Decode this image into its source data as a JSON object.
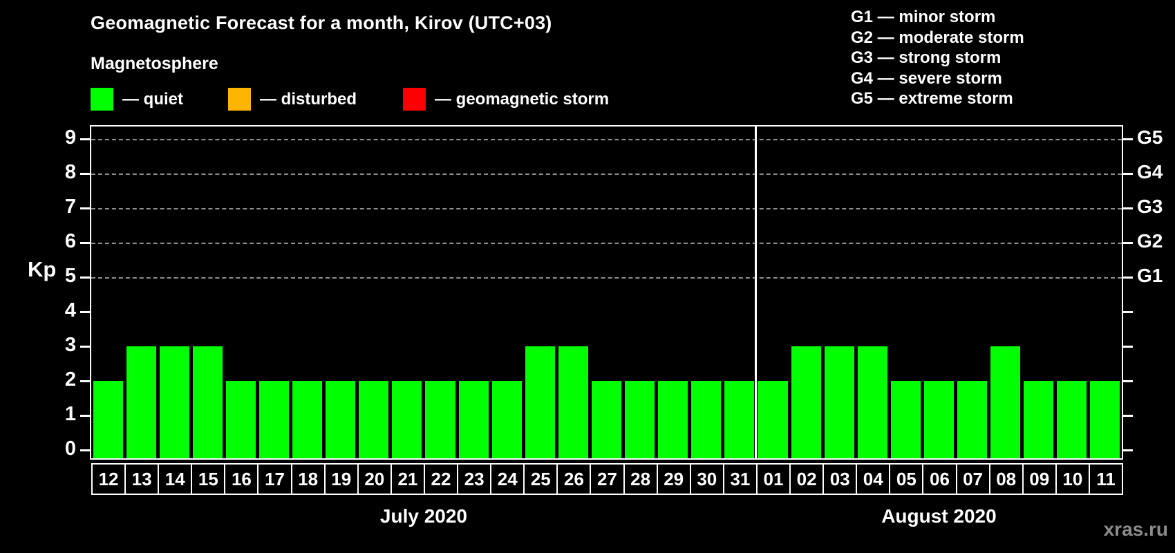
{
  "title": "Geomagnetic Forecast for a month, Kirov (UTC+03)",
  "subtitle": "Magnetosphere",
  "legend": {
    "items": [
      {
        "name": "quiet",
        "color": "#00ff00",
        "label": "— quiet"
      },
      {
        "name": "disturbed",
        "color": "#ffb400",
        "label": "— disturbed"
      },
      {
        "name": "storm",
        "color": "#ff0000",
        "label": "— geomagnetic storm"
      }
    ]
  },
  "g_legend": [
    "G1 — minor storm",
    "G2 — moderate storm",
    "G3 — strong storm",
    "G4 — severe storm",
    "G5 — extreme storm"
  ],
  "watermark": "xras.ru",
  "chart_data": {
    "type": "bar",
    "title": "Geomagnetic Forecast for a month, Kirov (UTC+03)",
    "ylabel": "Kp",
    "ylim": [
      0,
      9.4
    ],
    "yticks": [
      0,
      1,
      2,
      3,
      4,
      5,
      6,
      7,
      8,
      9
    ],
    "gridlines_at_kp": [
      5,
      6,
      7,
      8,
      9
    ],
    "grid_style": "dashed gray horizontal",
    "right_axis": [
      {
        "kp": 5,
        "label": "G1"
      },
      {
        "kp": 6,
        "label": "G2"
      },
      {
        "kp": 7,
        "label": "G3"
      },
      {
        "kp": 8,
        "label": "G4"
      },
      {
        "kp": 9,
        "label": "G5"
      }
    ],
    "bar_color": "#00ff00",
    "bar_status": "quiet",
    "groups": [
      {
        "month_label": "July 2020",
        "categories": [
          "12",
          "13",
          "14",
          "15",
          "16",
          "17",
          "18",
          "19",
          "20",
          "21",
          "22",
          "23",
          "24",
          "25",
          "26",
          "27",
          "28",
          "29",
          "30",
          "31"
        ],
        "values": [
          2,
          3,
          3,
          3,
          2,
          2,
          2,
          2,
          2,
          2,
          2,
          2,
          2,
          3,
          3,
          2,
          2,
          2,
          2,
          2
        ]
      },
      {
        "month_label": "August 2020",
        "categories": [
          "01",
          "02",
          "03",
          "04",
          "05",
          "06",
          "07",
          "08",
          "09",
          "10",
          "11"
        ],
        "values": [
          2,
          3,
          3,
          3,
          2,
          2,
          2,
          3,
          2,
          2,
          2
        ]
      }
    ]
  }
}
